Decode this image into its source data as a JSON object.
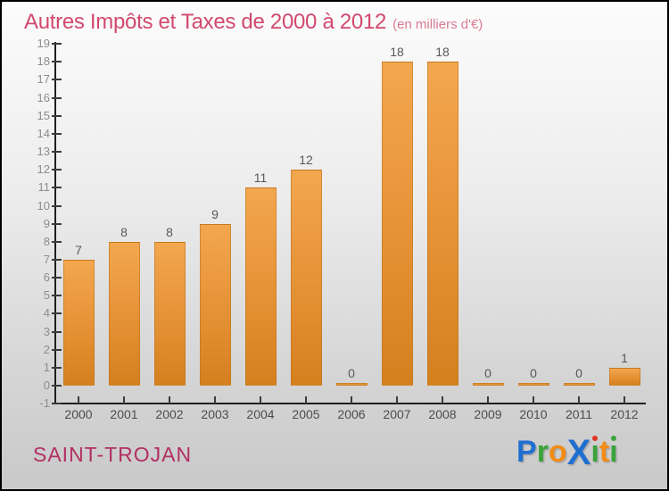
{
  "title": {
    "text": "Autres Impôts et Taxes de 2000 à 2012",
    "subtitle": "(en milliers d'€)"
  },
  "chart_data": {
    "type": "bar",
    "title": "Autres Impôts et Taxes de 2000 à 2012",
    "subtitle": "(en milliers d'€)",
    "categories": [
      "2000",
      "2001",
      "2002",
      "2003",
      "2004",
      "2005",
      "2006",
      "2007",
      "2008",
      "2009",
      "2010",
      "2011",
      "2012"
    ],
    "values": [
      7,
      8,
      8,
      9,
      11,
      12,
      0,
      18,
      18,
      0,
      0,
      0,
      1
    ],
    "ylim": [
      -1,
      19
    ],
    "ytick_step": 1,
    "grid": false,
    "legend": null,
    "xlabel": "",
    "ylabel": "",
    "colors": {
      "bar_top": "#f3a74f",
      "bar_bottom": "#d5801f",
      "axis": "#1f1f1f",
      "y_tick_label": "#8c8c8c",
      "x_tick_label": "#4c4c4c",
      "value_label": "#58585a",
      "title": "#d2486f",
      "subtitle": "#dc7b93"
    }
  },
  "footer": {
    "municipality": "SAINT-TROJAN",
    "logo_text": "ProXiti",
    "logo_letters": [
      {
        "ch": "P",
        "color": "#1f6fd0"
      },
      {
        "ch": "r",
        "color": "#3aa33a"
      },
      {
        "ch": "o",
        "color": "#f28c15"
      },
      {
        "ch": "X",
        "color": "#1f6fd0",
        "big": true
      },
      {
        "ch": "ı",
        "color": "#3aa33a",
        "dot": "#e03223"
      },
      {
        "ch": "t",
        "color": "#f28c15"
      },
      {
        "ch": "ı",
        "color": "#3aa33a",
        "dot": "#3aa33a"
      }
    ]
  }
}
